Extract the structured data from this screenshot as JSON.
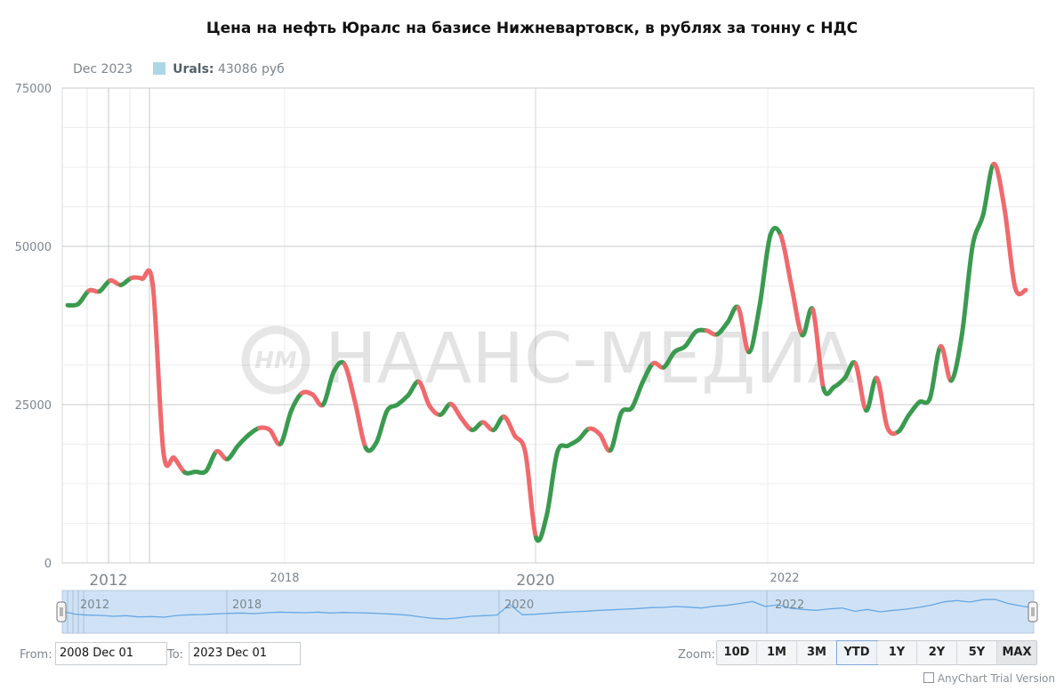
{
  "title": "Цена на нефть Юралс на базисе Нижневартовск, в рублях за тонну с НДС",
  "legend": {
    "date": "Dec 2023",
    "series": "Urals:",
    "value": "43086 руб",
    "swatch_color": "#abd6e8"
  },
  "watermark": "НААНС-МЕДИА",
  "colors": {
    "up": "#3a9a4f",
    "down": "#f0696c",
    "scroller_fill": "#cfe2f5",
    "scroller_line": "#64a8e4"
  },
  "chart_data": {
    "type": "line",
    "title": "Цена на нефть Юралс на базисе Нижневартовск, в рублях за тонну с НДС",
    "ylim": [
      0,
      75000
    ],
    "yticks": [
      "0",
      "25000",
      "50000",
      "75000"
    ],
    "xticks": [
      {
        "label": "2012",
        "size": "major"
      },
      {
        "label": "2018",
        "size": "minor"
      },
      {
        "label": "2020",
        "size": "major"
      },
      {
        "label": "2022",
        "size": "minor"
      }
    ],
    "scroller_labels": [
      "2012",
      "2018",
      "2020",
      "2022"
    ],
    "series": [
      {
        "name": "Urals",
        "points": [
          [
            0,
            40700
          ],
          [
            1,
            40900
          ],
          [
            2,
            43000
          ],
          [
            3,
            42900
          ],
          [
            4,
            44600
          ],
          [
            5,
            43900
          ],
          [
            6,
            45000
          ],
          [
            7,
            44900
          ],
          [
            8,
            43900
          ],
          [
            9,
            17500
          ],
          [
            10,
            16600
          ],
          [
            11,
            14300
          ],
          [
            12,
            14400
          ],
          [
            13,
            14500
          ],
          [
            14,
            17600
          ],
          [
            15,
            16400
          ],
          [
            16,
            18500
          ],
          [
            17,
            20200
          ],
          [
            18,
            21300
          ],
          [
            19,
            21000
          ],
          [
            20,
            18800
          ],
          [
            21,
            24000
          ],
          [
            22,
            26800
          ],
          [
            23,
            26600
          ],
          [
            24,
            25000
          ],
          [
            25,
            30200
          ],
          [
            26,
            31400
          ],
          [
            27,
            25400
          ],
          [
            28,
            18200
          ],
          [
            29,
            19000
          ],
          [
            30,
            24000
          ],
          [
            31,
            25000
          ],
          [
            32,
            26500
          ],
          [
            33,
            28600
          ],
          [
            34,
            24800
          ],
          [
            35,
            23400
          ],
          [
            36,
            25100
          ],
          [
            37,
            22800
          ],
          [
            38,
            21000
          ],
          [
            39,
            22200
          ],
          [
            40,
            21000
          ],
          [
            41,
            23100
          ],
          [
            42,
            20100
          ],
          [
            43,
            17400
          ],
          [
            44,
            4000
          ],
          [
            45,
            7500
          ],
          [
            46,
            17500
          ],
          [
            47,
            18500
          ],
          [
            48,
            19500
          ],
          [
            49,
            21200
          ],
          [
            50,
            20300
          ],
          [
            51,
            17800
          ],
          [
            52,
            23700
          ],
          [
            53,
            24500
          ],
          [
            54,
            28500
          ],
          [
            55,
            31500
          ],
          [
            56,
            30900
          ],
          [
            57,
            33300
          ],
          [
            58,
            34200
          ],
          [
            59,
            36500
          ],
          [
            60,
            36700
          ],
          [
            61,
            36100
          ],
          [
            62,
            38000
          ],
          [
            63,
            40300
          ],
          [
            64,
            33300
          ],
          [
            65,
            40600
          ],
          [
            66,
            51700
          ],
          [
            67,
            51700
          ],
          [
            68,
            43700
          ],
          [
            69,
            36000
          ],
          [
            70,
            40000
          ],
          [
            71,
            27600
          ],
          [
            72,
            27800
          ],
          [
            73,
            29200
          ],
          [
            74,
            31500
          ],
          [
            75,
            24100
          ],
          [
            76,
            29200
          ],
          [
            77,
            21400
          ],
          [
            78,
            20700
          ],
          [
            79,
            23300
          ],
          [
            80,
            25400
          ],
          [
            81,
            26000
          ],
          [
            82,
            34200
          ],
          [
            83,
            28800
          ],
          [
            84,
            36000
          ],
          [
            85,
            50000
          ],
          [
            86,
            55000
          ],
          [
            87,
            63000
          ],
          [
            88,
            56000
          ],
          [
            89,
            43500
          ],
          [
            90,
            43100
          ]
        ]
      }
    ],
    "scroller_values": [
      [
        0,
        6200
      ],
      [
        1,
        5200
      ],
      [
        2,
        4900
      ],
      [
        3,
        4800
      ],
      [
        4,
        4500
      ],
      [
        5,
        4700
      ],
      [
        6,
        4300
      ],
      [
        7,
        4400
      ],
      [
        8,
        4200
      ],
      [
        9,
        4800
      ],
      [
        10,
        5000
      ],
      [
        11,
        5100
      ],
      [
        12,
        5300
      ],
      [
        13,
        5500
      ],
      [
        14,
        5600
      ],
      [
        15,
        5400
      ],
      [
        16,
        5700
      ],
      [
        17,
        5900
      ],
      [
        18,
        5800
      ],
      [
        19,
        5700
      ],
      [
        20,
        5900
      ],
      [
        21,
        5600
      ],
      [
        22,
        5800
      ],
      [
        23,
        5700
      ],
      [
        24,
        5600
      ],
      [
        25,
        5400
      ],
      [
        26,
        5200
      ],
      [
        27,
        4900
      ],
      [
        28,
        4300
      ],
      [
        29,
        3800
      ],
      [
        30,
        3600
      ],
      [
        31,
        4000
      ],
      [
        32,
        4500
      ],
      [
        33,
        4700
      ],
      [
        34,
        4900
      ],
      [
        35,
        8500
      ],
      [
        36,
        5000
      ],
      [
        37,
        5200
      ],
      [
        38,
        5500
      ],
      [
        39,
        5800
      ],
      [
        40,
        6000
      ],
      [
        41,
        6200
      ],
      [
        42,
        6500
      ],
      [
        43,
        6700
      ],
      [
        44,
        6900
      ],
      [
        45,
        7100
      ],
      [
        46,
        7400
      ],
      [
        47,
        7500
      ],
      [
        48,
        7800
      ],
      [
        49,
        7600
      ],
      [
        50,
        7300
      ],
      [
        51,
        7900
      ],
      [
        52,
        8200
      ],
      [
        53,
        8800
      ],
      [
        54,
        9500
      ],
      [
        55,
        7800
      ],
      [
        56,
        8400
      ],
      [
        57,
        7200
      ],
      [
        58,
        6800
      ],
      [
        59,
        6500
      ],
      [
        60,
        7000
      ],
      [
        61,
        7300
      ],
      [
        62,
        6200
      ],
      [
        63,
        6800
      ],
      [
        64,
        6000
      ],
      [
        65,
        6500
      ],
      [
        66,
        6900
      ],
      [
        67,
        7500
      ],
      [
        68,
        8300
      ],
      [
        69,
        9400
      ],
      [
        70,
        9800
      ],
      [
        71,
        9300
      ],
      [
        72,
        10100
      ],
      [
        73,
        10200
      ],
      [
        74,
        8800
      ],
      [
        75,
        8000
      ],
      [
        76,
        7300
      ]
    ]
  },
  "controls": {
    "from_label": "From:",
    "from_value": "2008 Dec 01",
    "to_label": "To:",
    "to_value": "2023 Dec 01",
    "zoom_label": "Zoom:",
    "zoom_buttons": [
      "10D",
      "1M",
      "3M",
      "YTD",
      "1Y",
      "2Y",
      "5Y",
      "MAX"
    ]
  },
  "footer": "AnyChart Trial Version"
}
